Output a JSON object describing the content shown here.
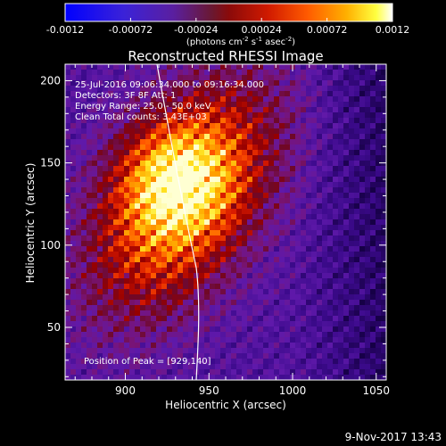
{
  "colorbar": {
    "tick_labels": [
      "-0.0012",
      "-0.00072",
      "-0.00024",
      "0.00024",
      "0.00072",
      "0.0012"
    ],
    "tick_values": [
      -0.0012,
      -0.00072,
      -0.00024,
      0.00024,
      0.00072,
      0.0012
    ],
    "range": [
      -0.0012,
      0.0012
    ],
    "unit_prefix": "(photons cm",
    "unit_sup1": "-2",
    "unit_mid": " s",
    "unit_sup2": "-1",
    "unit_mid2": " asec",
    "unit_sup3": "-2",
    "unit_suffix": ")"
  },
  "annotations": {
    "lines": [
      "25-Jul-2016 09:06:34.000 to 09:16:34.000",
      "Detectors: 3F 8F  Att: 1",
      "Energy Range: 25.0 - 50.0 keV",
      "Clean    Total counts: 3.43E+03"
    ],
    "peak": "Position of Peak = [929,140]"
  },
  "timestamp": "9-Nov-2017 13:43",
  "colors": {
    "background": "#000000",
    "frame": "#ffffff",
    "limb_line": "#ffffff"
  },
  "chart_data": {
    "type": "heatmap",
    "title": "Reconstructed RHESSI Image",
    "xlabel": "Heliocentric X (arcsec)",
    "ylabel": "Heliocentric Y (arcsec)",
    "xlim": [
      864,
      1056
    ],
    "ylim": [
      18,
      210
    ],
    "x_ticks": [
      900,
      950,
      1000,
      1050
    ],
    "y_ticks": [
      50,
      100,
      150,
      200
    ],
    "x_tick_labels": [
      "900",
      "950",
      "1000",
      "1050"
    ],
    "y_tick_labels": [
      "50",
      "100",
      "150",
      "200"
    ],
    "peak_position": [
      929,
      140
    ],
    "colormap": "blue-purple-red-orange-yellow-white"
  }
}
